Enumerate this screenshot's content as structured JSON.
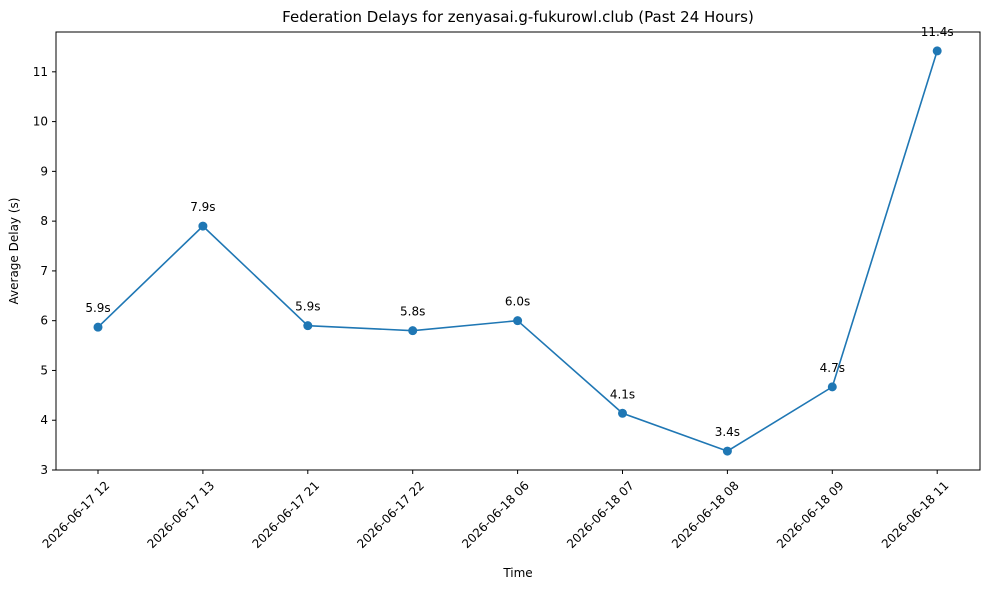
{
  "chart_data": {
    "type": "line",
    "title": "Federation Delays for zenyasai.g-fukurowl.club (Past 24 Hours)",
    "xlabel": "Time",
    "ylabel": "Average Delay (s)",
    "categories": [
      "2026-06-17 12",
      "2026-06-17 13",
      "2026-06-17 21",
      "2026-06-17 22",
      "2026-06-18 06",
      "2026-06-18 07",
      "2026-06-18 08",
      "2026-06-18 09",
      "2026-06-18 11"
    ],
    "values": [
      5.87,
      7.9,
      5.9,
      5.8,
      6.0,
      4.14,
      3.38,
      4.67,
      11.42
    ],
    "data_labels": [
      "5.9s",
      "7.9s",
      "5.9s",
      "5.8s",
      "6.0s",
      "4.1s",
      "3.4s",
      "4.7s",
      "11.4s"
    ],
    "yticks": [
      3,
      4,
      5,
      6,
      7,
      8,
      9,
      10,
      11
    ],
    "ylim": [
      3,
      11.8
    ],
    "grid": false,
    "legend": "none",
    "colors": {
      "series": "#1f77b4",
      "axis": "#000000"
    }
  }
}
